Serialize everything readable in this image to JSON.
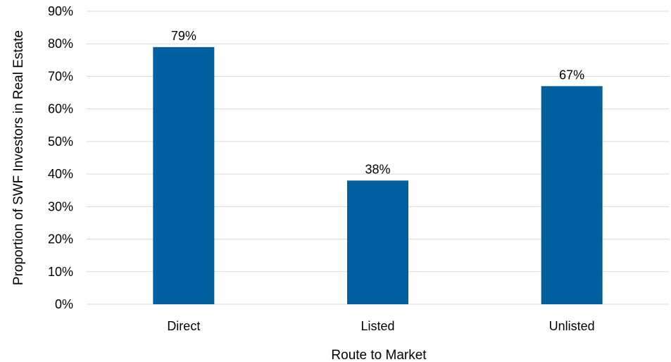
{
  "chart_data": {
    "type": "bar",
    "categories": [
      "Direct",
      "Listed",
      "Unlisted"
    ],
    "values": [
      79,
      38,
      67
    ],
    "data_labels": [
      "79%",
      "38%",
      "67%"
    ],
    "title": "",
    "xlabel": "Route to Market",
    "ylabel": "Proportion of SWF Investors in Real Estate",
    "ylim": [
      0,
      90
    ],
    "yticks": [
      0,
      10,
      20,
      30,
      40,
      50,
      60,
      70,
      80,
      90
    ],
    "ytick_labels": [
      "0%",
      "10%",
      "20%",
      "30%",
      "40%",
      "50%",
      "60%",
      "70%",
      "80%",
      "90%"
    ],
    "grid": "horizontal",
    "legend": "none",
    "bar_color": "#005f9e"
  }
}
